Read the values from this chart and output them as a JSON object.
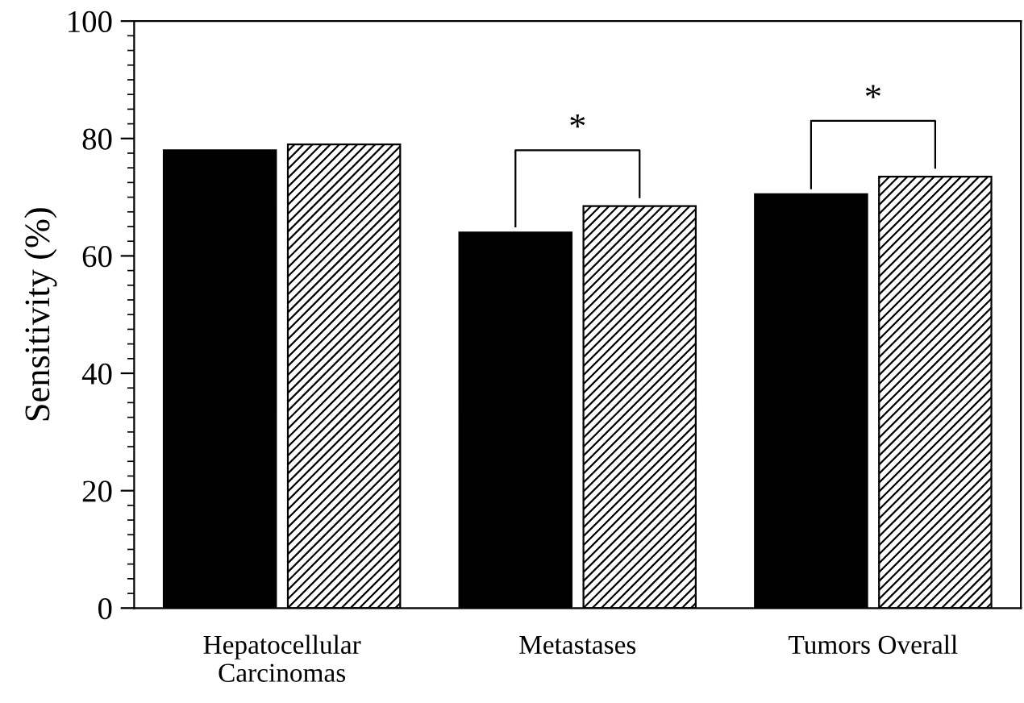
{
  "chart_data": {
    "type": "bar",
    "ylabel": "Sensitivity (%)",
    "categories": [
      "Hepatocellular\nCarcinomas",
      "Metastases",
      "Tumors Overall"
    ],
    "series": [
      {
        "color": "#000000",
        "values": [
          78,
          64,
          70.5
        ]
      },
      {
        "color": "#000000",
        "values": [
          79,
          68.5,
          73.5
        ]
      }
    ],
    "annotations": [
      "*",
      "*"
    ],
    "ylim": [
      0,
      100
    ],
    "yticks": [
      0,
      20,
      40,
      60,
      80,
      100
    ],
    "grid": false,
    "legend": false
  }
}
